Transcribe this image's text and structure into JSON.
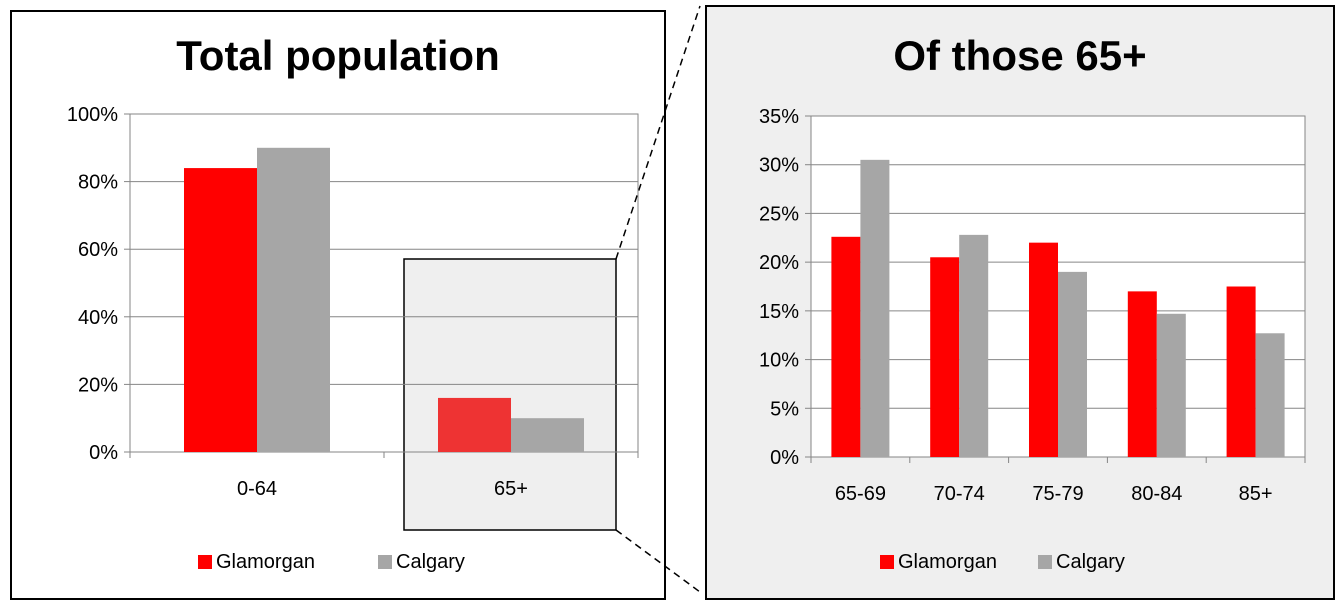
{
  "chart_data": [
    {
      "type": "bar",
      "title": "Total population",
      "categories": [
        "0-64",
        "65+"
      ],
      "series": [
        {
          "name": "Glamorgan",
          "values": [
            84,
            16
          ]
        },
        {
          "name": "Calgary",
          "values": [
            90,
            10
          ]
        }
      ],
      "ylim": [
        0,
        100
      ],
      "yticks": [
        "0%",
        "20%",
        "40%",
        "60%",
        "80%",
        "100%"
      ],
      "grid": true,
      "legend": "bottom"
    },
    {
      "type": "bar",
      "title": "Of those 65+",
      "categories": [
        "65-69",
        "70-74",
        "75-79",
        "80-84",
        "85+"
      ],
      "series": [
        {
          "name": "Glamorgan",
          "values": [
            22.6,
            20.5,
            22.0,
            17.0,
            17.5
          ]
        },
        {
          "name": "Calgary",
          "values": [
            30.5,
            22.8,
            19.0,
            14.7,
            12.7
          ]
        }
      ],
      "ylim": [
        0,
        35
      ],
      "yticks": [
        "0%",
        "5%",
        "10%",
        "15%",
        "20%",
        "25%",
        "30%",
        "35%"
      ],
      "grid": true,
      "legend": "bottom"
    }
  ],
  "colors": {
    "glamorgan": "#ff0000",
    "glamorgan_highlight": "#ee3333",
    "calgary": "#a6a6a6",
    "highlight_bg": "#efefef"
  }
}
